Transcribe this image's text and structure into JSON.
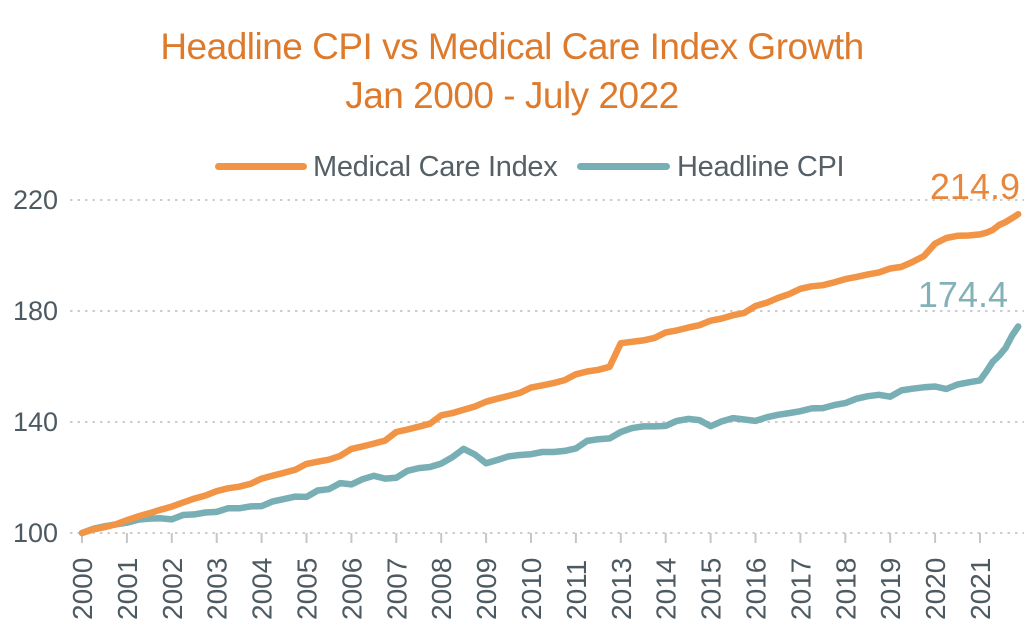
{
  "title": {
    "line1": "Headline CPI vs Medical Care Index Growth",
    "line2": "Jan 2000 - July 2022"
  },
  "legend": [
    {
      "label": "Medical Care Index",
      "color": "#F29445"
    },
    {
      "label": "Headline CPI",
      "color": "#77AFB5"
    }
  ],
  "colors": {
    "title": "#DE7A2B",
    "axis_text": "#4E5A62",
    "legend_text": "#555F66",
    "gridline": "#CDCDCD",
    "tick": "#C6C6C6",
    "background": "#FFFFFF"
  },
  "chart_data": {
    "type": "line",
    "title": "Headline CPI vs Medical Care Index Growth",
    "subtitle": "Jan 2000 - July 2022",
    "xlabel": "",
    "ylabel": "",
    "grid": "horizontal-dotted",
    "legend_position": "top-center",
    "y_ticks": [
      100,
      140,
      180,
      220
    ],
    "ylim": [
      100,
      230
    ],
    "x_tick_labels": [
      "2000",
      "2001",
      "2002",
      "2003",
      "2004",
      "2005",
      "2006",
      "2007",
      "2008",
      "2009",
      "2010",
      "2011",
      "2013",
      "2014",
      "2015",
      "2016",
      "2017",
      "2018",
      "2019",
      "2020",
      "2021"
    ],
    "x_unit": "year (quarterly points, 2012 label/position skipped on axis)",
    "index_base": "Jan 2000 = 100",
    "series": [
      {
        "name": "Medical Care Index",
        "color": "#F29445",
        "end_label": "214.9",
        "end_label_color": "#E8873C",
        "x": [
          2000,
          2000.25,
          2000.5,
          2000.75,
          2001,
          2001.25,
          2001.5,
          2001.75,
          2002,
          2002.25,
          2002.5,
          2002.75,
          2003,
          2003.25,
          2003.5,
          2003.75,
          2004,
          2004.25,
          2004.5,
          2004.75,
          2005,
          2005.25,
          2005.5,
          2005.75,
          2006,
          2006.25,
          2006.5,
          2006.75,
          2007,
          2007.25,
          2007.5,
          2007.75,
          2008,
          2008.25,
          2008.5,
          2008.75,
          2009,
          2009.25,
          2009.5,
          2009.75,
          2010,
          2010.25,
          2010.5,
          2010.75,
          2011,
          2011.25,
          2011.5,
          2011.75,
          2013,
          2013.25,
          2013.5,
          2013.75,
          2014,
          2014.25,
          2014.5,
          2014.75,
          2015,
          2015.25,
          2015.5,
          2015.75,
          2016,
          2016.25,
          2016.5,
          2016.75,
          2017,
          2017.25,
          2017.5,
          2017.75,
          2018,
          2018.25,
          2018.5,
          2018.75,
          2019,
          2019.25,
          2019.5,
          2019.75,
          2020,
          2020.25,
          2020.5,
          2020.75,
          2021,
          2021.25,
          2021.5,
          2021.75,
          2022,
          2022.25,
          2022.5
        ],
        "values": [
          100,
          101.3,
          102.1,
          103.1,
          104.6,
          106.0,
          107.1,
          108.4,
          109.5,
          111.0,
          112.4,
          113.5,
          115.1,
          116.1,
          116.7,
          117.7,
          119.6,
          120.7,
          121.7,
          122.8,
          124.9,
          125.7,
          126.4,
          127.8,
          130.3,
          131.2,
          132.2,
          133.3,
          136.4,
          137.3,
          138.3,
          139.4,
          142.4,
          143.2,
          144.4,
          145.6,
          147.3,
          148.4,
          149.4,
          150.5,
          152.4,
          153.2,
          154.0,
          155.1,
          157.2,
          158.2,
          158.8,
          159.9,
          168.4,
          168.9,
          169.4,
          170.3,
          172.3,
          173.0,
          174.0,
          174.9,
          176.5,
          177.3,
          178.5,
          179.3,
          181.8,
          183.0,
          184.7,
          186.1,
          188.0,
          188.9,
          189.3,
          190.3,
          191.5,
          192.3,
          193.2,
          193.9,
          195.3,
          195.9,
          197.7,
          199.8,
          204.3,
          206.3,
          207.1,
          207.2,
          207.6,
          208.2,
          209.2,
          211.0,
          212.0,
          213.4,
          214.9
        ]
      },
      {
        "name": "Headline CPI",
        "color": "#77AFB5",
        "end_label": "174.4",
        "end_label_color": "#83B1B8",
        "x": [
          2000,
          2000.25,
          2000.5,
          2000.75,
          2001,
          2001.25,
          2001.5,
          2001.75,
          2002,
          2002.25,
          2002.5,
          2002.75,
          2003,
          2003.25,
          2003.5,
          2003.75,
          2004,
          2004.25,
          2004.5,
          2004.75,
          2005,
          2005.25,
          2005.5,
          2005.75,
          2006,
          2006.25,
          2006.5,
          2006.75,
          2007,
          2007.25,
          2007.5,
          2007.75,
          2008,
          2008.25,
          2008.5,
          2008.75,
          2009,
          2009.25,
          2009.5,
          2009.75,
          2010,
          2010.25,
          2010.5,
          2010.75,
          2011,
          2011.25,
          2011.5,
          2011.75,
          2013,
          2013.25,
          2013.5,
          2013.75,
          2014,
          2014.25,
          2014.5,
          2014.75,
          2015,
          2015.25,
          2015.5,
          2015.75,
          2016,
          2016.25,
          2016.5,
          2016.75,
          2017,
          2017.25,
          2017.5,
          2017.75,
          2018,
          2018.25,
          2018.5,
          2018.75,
          2019,
          2019.25,
          2019.5,
          2019.75,
          2020,
          2020.25,
          2020.5,
          2020.75,
          2021,
          2021.25,
          2021.5,
          2021.75,
          2022,
          2022.25,
          2022.5
        ],
        "values": [
          100,
          101.5,
          102.4,
          103.1,
          103.7,
          104.8,
          105.2,
          105.3,
          104.9,
          106.5,
          106.7,
          107.4,
          107.6,
          108.9,
          108.9,
          109.6,
          109.7,
          111.4,
          112.2,
          113.1,
          113.0,
          115.3,
          115.8,
          118.0,
          117.5,
          119.4,
          120.6,
          119.6,
          119.9,
          122.4,
          123.4,
          123.8,
          125.0,
          127.3,
          130.3,
          128.3,
          125.1,
          126.3,
          127.6,
          128.1,
          128.4,
          129.2,
          129.2,
          129.6,
          130.5,
          133.2,
          133.8,
          134.1,
          136.4,
          137.8,
          138.4,
          138.4,
          138.6,
          140.4,
          141.1,
          140.7,
          138.5,
          140.2,
          141.4,
          140.9,
          140.4,
          141.7,
          142.6,
          143.2,
          143.9,
          144.9,
          145.0,
          146.1,
          146.8,
          148.4,
          149.3,
          149.8,
          149.1,
          151.4,
          152.0,
          152.5,
          152.8,
          151.9,
          153.5,
          154.3,
          155.0,
          158.2,
          161.7,
          163.9,
          166.6,
          171.0,
          174.4
        ]
      }
    ]
  }
}
